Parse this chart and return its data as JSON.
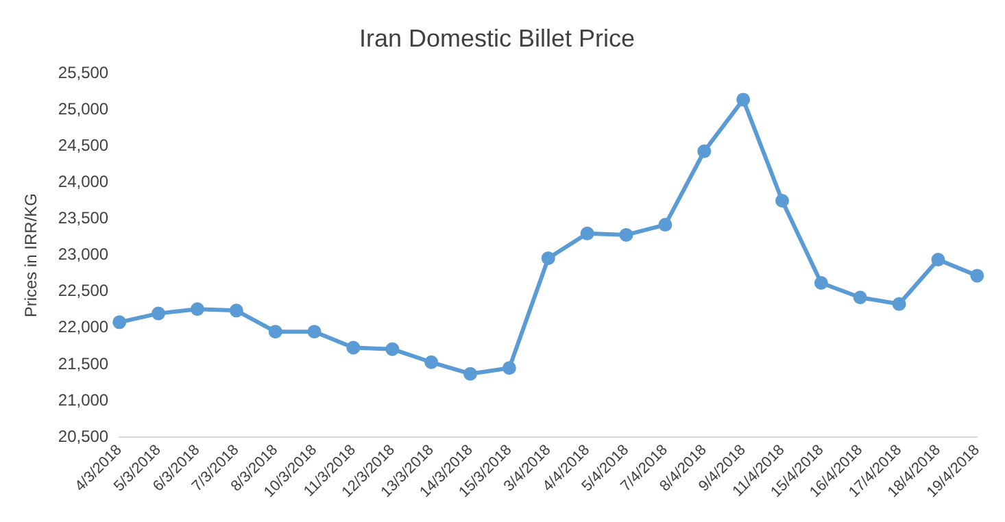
{
  "chart_data": {
    "type": "line",
    "title": "Iran Domestic Billet Price",
    "ylabel": "Prices in IRR/KG",
    "categories": [
      "4/3/2018",
      "5/3/2018",
      "6/3/2018",
      "7/3/2018",
      "8/3/2018",
      "10/3/2018",
      "11/3/2018",
      "12/3/2018",
      "13/3/2018",
      "14/3/2018",
      "15/3/2018",
      "3/4/2018",
      "4/4/2018",
      "5/4/2018",
      "7/4/2018",
      "8/4/2018",
      "9/4/2018",
      "11/4/2018",
      "15/4/2018",
      "16/4/2018",
      "17/4/2018",
      "18/4/2018",
      "19/4/2018"
    ],
    "series": [
      {
        "color": "#5b9bd5",
        "values": [
          22080,
          22200,
          22260,
          22240,
          21950,
          21950,
          21730,
          21710,
          21530,
          21370,
          21450,
          22960,
          23300,
          23280,
          23420,
          24430,
          25140,
          23750,
          22620,
          22420,
          22330,
          22940,
          22720
        ]
      }
    ],
    "ylim": [
      20500,
      25500
    ],
    "yticks": [
      {
        "value": 20500,
        "label": "20,500"
      },
      {
        "value": 21000,
        "label": "21,000"
      },
      {
        "value": 21500,
        "label": "21,500"
      },
      {
        "value": 22000,
        "label": "22,000"
      },
      {
        "value": 22500,
        "label": "22,500"
      },
      {
        "value": 23000,
        "label": "23,000"
      },
      {
        "value": 23500,
        "label": "23,500"
      },
      {
        "value": 24000,
        "label": "24,000"
      },
      {
        "value": 24500,
        "label": "24,500"
      },
      {
        "value": 25000,
        "label": "25,000"
      },
      {
        "value": 25500,
        "label": "25,500"
      }
    ],
    "grid": false,
    "legend": false,
    "marker": "circle",
    "line_style": "solid"
  }
}
